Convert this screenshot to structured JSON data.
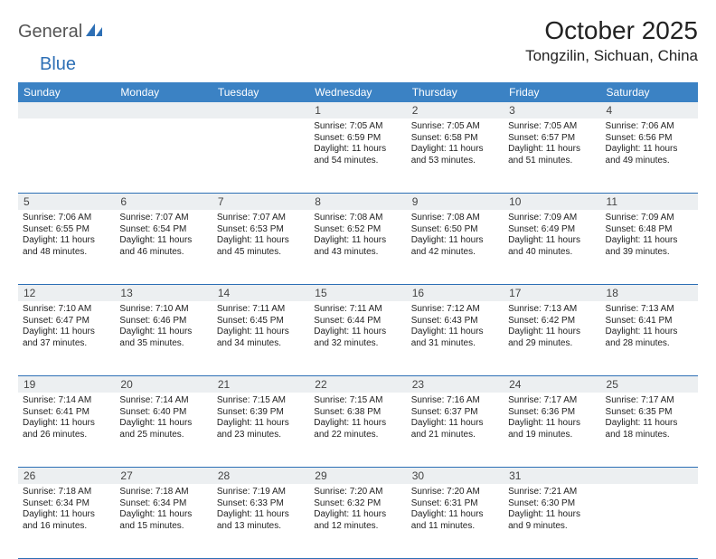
{
  "logo": {
    "text1": "General",
    "text2": "Blue"
  },
  "title": "October 2025",
  "location": "Tongzilin, Sichuan, China",
  "colors": {
    "header_bg": "#3b82c4",
    "header_text": "#ffffff",
    "daynum_bg": "#eceff1",
    "divider": "#2d6fb5",
    "body_text": "#222222",
    "logo_gray": "#555555",
    "logo_blue": "#2d6fb5",
    "background": "#ffffff"
  },
  "days_of_week": [
    "Sunday",
    "Monday",
    "Tuesday",
    "Wednesday",
    "Thursday",
    "Friday",
    "Saturday"
  ],
  "weeks": [
    [
      {
        "n": "",
        "lines": []
      },
      {
        "n": "",
        "lines": []
      },
      {
        "n": "",
        "lines": []
      },
      {
        "n": "1",
        "lines": [
          "Sunrise: 7:05 AM",
          "Sunset: 6:59 PM",
          "Daylight: 11 hours and 54 minutes."
        ]
      },
      {
        "n": "2",
        "lines": [
          "Sunrise: 7:05 AM",
          "Sunset: 6:58 PM",
          "Daylight: 11 hours and 53 minutes."
        ]
      },
      {
        "n": "3",
        "lines": [
          "Sunrise: 7:05 AM",
          "Sunset: 6:57 PM",
          "Daylight: 11 hours and 51 minutes."
        ]
      },
      {
        "n": "4",
        "lines": [
          "Sunrise: 7:06 AM",
          "Sunset: 6:56 PM",
          "Daylight: 11 hours and 49 minutes."
        ]
      }
    ],
    [
      {
        "n": "5",
        "lines": [
          "Sunrise: 7:06 AM",
          "Sunset: 6:55 PM",
          "Daylight: 11 hours and 48 minutes."
        ]
      },
      {
        "n": "6",
        "lines": [
          "Sunrise: 7:07 AM",
          "Sunset: 6:54 PM",
          "Daylight: 11 hours and 46 minutes."
        ]
      },
      {
        "n": "7",
        "lines": [
          "Sunrise: 7:07 AM",
          "Sunset: 6:53 PM",
          "Daylight: 11 hours and 45 minutes."
        ]
      },
      {
        "n": "8",
        "lines": [
          "Sunrise: 7:08 AM",
          "Sunset: 6:52 PM",
          "Daylight: 11 hours and 43 minutes."
        ]
      },
      {
        "n": "9",
        "lines": [
          "Sunrise: 7:08 AM",
          "Sunset: 6:50 PM",
          "Daylight: 11 hours and 42 minutes."
        ]
      },
      {
        "n": "10",
        "lines": [
          "Sunrise: 7:09 AM",
          "Sunset: 6:49 PM",
          "Daylight: 11 hours and 40 minutes."
        ]
      },
      {
        "n": "11",
        "lines": [
          "Sunrise: 7:09 AM",
          "Sunset: 6:48 PM",
          "Daylight: 11 hours and 39 minutes."
        ]
      }
    ],
    [
      {
        "n": "12",
        "lines": [
          "Sunrise: 7:10 AM",
          "Sunset: 6:47 PM",
          "Daylight: 11 hours and 37 minutes."
        ]
      },
      {
        "n": "13",
        "lines": [
          "Sunrise: 7:10 AM",
          "Sunset: 6:46 PM",
          "Daylight: 11 hours and 35 minutes."
        ]
      },
      {
        "n": "14",
        "lines": [
          "Sunrise: 7:11 AM",
          "Sunset: 6:45 PM",
          "Daylight: 11 hours and 34 minutes."
        ]
      },
      {
        "n": "15",
        "lines": [
          "Sunrise: 7:11 AM",
          "Sunset: 6:44 PM",
          "Daylight: 11 hours and 32 minutes."
        ]
      },
      {
        "n": "16",
        "lines": [
          "Sunrise: 7:12 AM",
          "Sunset: 6:43 PM",
          "Daylight: 11 hours and 31 minutes."
        ]
      },
      {
        "n": "17",
        "lines": [
          "Sunrise: 7:13 AM",
          "Sunset: 6:42 PM",
          "Daylight: 11 hours and 29 minutes."
        ]
      },
      {
        "n": "18",
        "lines": [
          "Sunrise: 7:13 AM",
          "Sunset: 6:41 PM",
          "Daylight: 11 hours and 28 minutes."
        ]
      }
    ],
    [
      {
        "n": "19",
        "lines": [
          "Sunrise: 7:14 AM",
          "Sunset: 6:41 PM",
          "Daylight: 11 hours and 26 minutes."
        ]
      },
      {
        "n": "20",
        "lines": [
          "Sunrise: 7:14 AM",
          "Sunset: 6:40 PM",
          "Daylight: 11 hours and 25 minutes."
        ]
      },
      {
        "n": "21",
        "lines": [
          "Sunrise: 7:15 AM",
          "Sunset: 6:39 PM",
          "Daylight: 11 hours and 23 minutes."
        ]
      },
      {
        "n": "22",
        "lines": [
          "Sunrise: 7:15 AM",
          "Sunset: 6:38 PM",
          "Daylight: 11 hours and 22 minutes."
        ]
      },
      {
        "n": "23",
        "lines": [
          "Sunrise: 7:16 AM",
          "Sunset: 6:37 PM",
          "Daylight: 11 hours and 21 minutes."
        ]
      },
      {
        "n": "24",
        "lines": [
          "Sunrise: 7:17 AM",
          "Sunset: 6:36 PM",
          "Daylight: 11 hours and 19 minutes."
        ]
      },
      {
        "n": "25",
        "lines": [
          "Sunrise: 7:17 AM",
          "Sunset: 6:35 PM",
          "Daylight: 11 hours and 18 minutes."
        ]
      }
    ],
    [
      {
        "n": "26",
        "lines": [
          "Sunrise: 7:18 AM",
          "Sunset: 6:34 PM",
          "Daylight: 11 hours and 16 minutes."
        ]
      },
      {
        "n": "27",
        "lines": [
          "Sunrise: 7:18 AM",
          "Sunset: 6:34 PM",
          "Daylight: 11 hours and 15 minutes."
        ]
      },
      {
        "n": "28",
        "lines": [
          "Sunrise: 7:19 AM",
          "Sunset: 6:33 PM",
          "Daylight: 11 hours and 13 minutes."
        ]
      },
      {
        "n": "29",
        "lines": [
          "Sunrise: 7:20 AM",
          "Sunset: 6:32 PM",
          "Daylight: 11 hours and 12 minutes."
        ]
      },
      {
        "n": "30",
        "lines": [
          "Sunrise: 7:20 AM",
          "Sunset: 6:31 PM",
          "Daylight: 11 hours and 11 minutes."
        ]
      },
      {
        "n": "31",
        "lines": [
          "Sunrise: 7:21 AM",
          "Sunset: 6:30 PM",
          "Daylight: 11 hours and 9 minutes."
        ]
      },
      {
        "n": "",
        "lines": []
      }
    ]
  ]
}
